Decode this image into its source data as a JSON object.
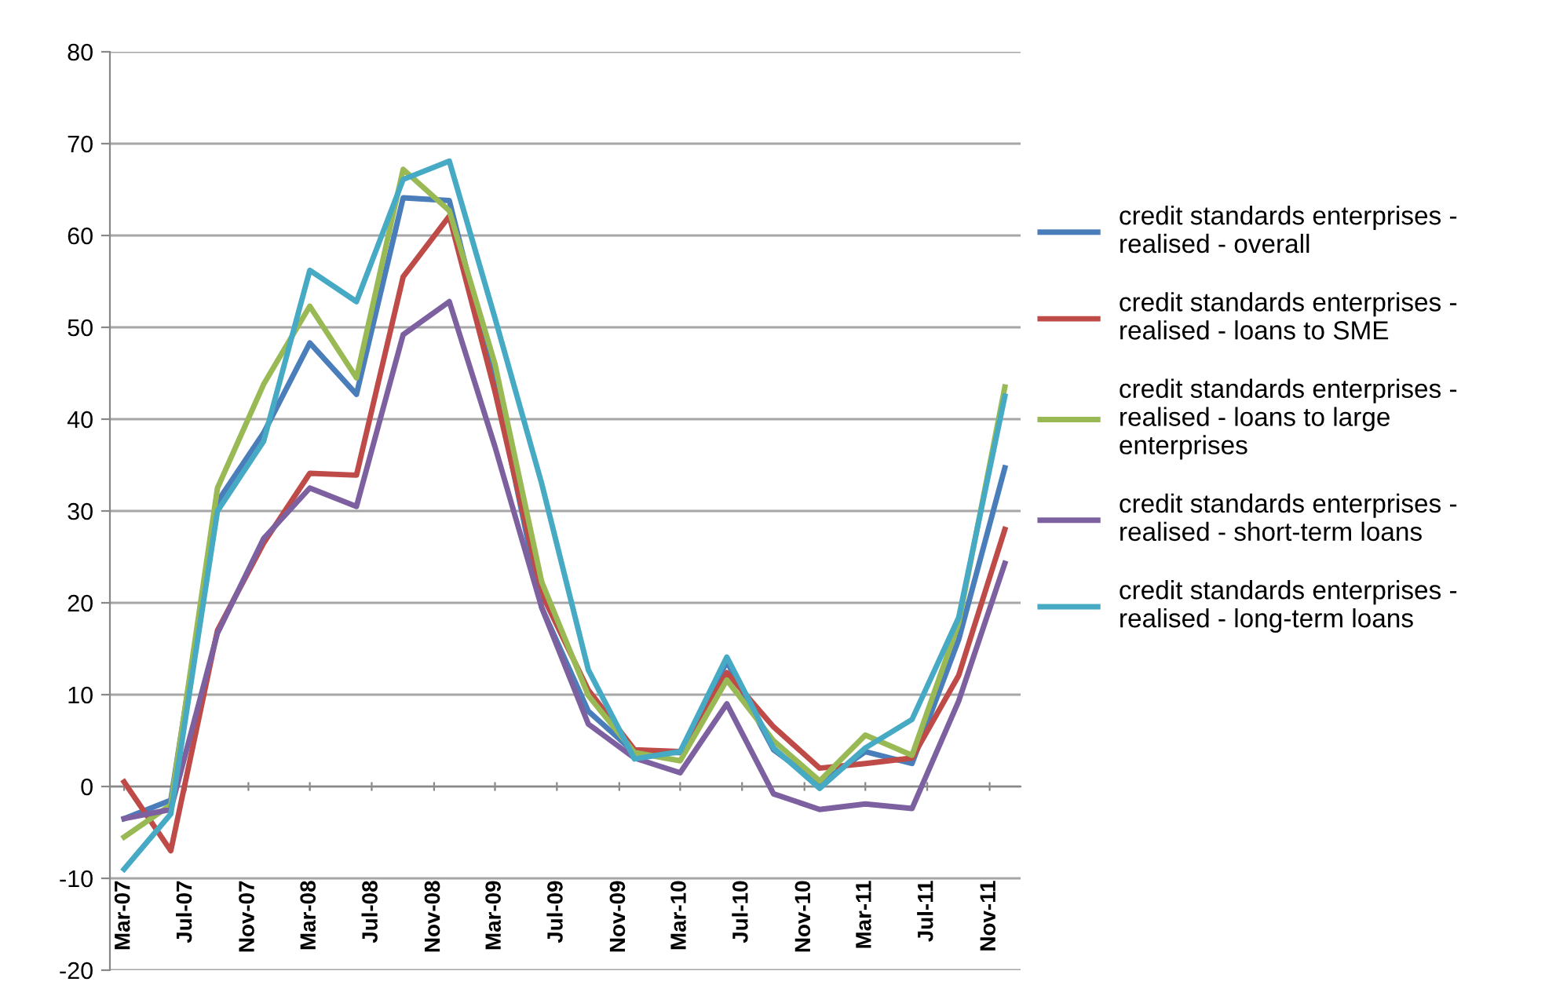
{
  "chart_data": {
    "type": "line",
    "x": [
      "2007-03",
      "2007-06",
      "2007-09",
      "2007-12",
      "2008-03",
      "2008-06",
      "2008-09",
      "2008-12",
      "2009-03",
      "2009-06",
      "2009-09",
      "2009-12",
      "2010-03",
      "2010-06",
      "2010-09",
      "2010-12",
      "2011-03",
      "2011-06",
      "2011-09",
      "2011-12"
    ],
    "series": [
      {
        "name": "credit standards enterprises - realised - overall",
        "color": "#4a7ebb",
        "values": [
          -3.5,
          -1.5,
          31,
          38.5,
          48.3,
          42.7,
          64.1,
          63.8,
          44,
          19.5,
          8.2,
          3.7,
          3.7,
          13.6,
          4,
          0.3,
          3.8,
          2.5,
          16,
          34.7
        ]
      },
      {
        "name": "credit standards enterprises - realised - loans to SME",
        "color": "#be4b48",
        "values": [
          0.5,
          -7,
          17,
          26.5,
          34.1,
          33.9,
          55.5,
          62.1,
          43,
          21,
          10.5,
          4,
          3.8,
          12.4,
          6.5,
          2,
          2.5,
          3.1,
          12.1,
          28
        ]
      },
      {
        "name": "credit standards enterprises - realised - loans to large enterprises",
        "color": "#98b954",
        "values": [
          -5.5,
          -2,
          32.5,
          43.8,
          52.3,
          44.5,
          67.2,
          62.7,
          46,
          22.3,
          9.9,
          3.7,
          2.8,
          11.6,
          5,
          0.6,
          5.6,
          3.4,
          17.8,
          43.5
        ]
      },
      {
        "name": "credit standards enterprises - realised - short-term loans",
        "color": "#7d60a0",
        "values": [
          -3.5,
          -2.5,
          16.7,
          27,
          32.5,
          30.5,
          49.2,
          52.8,
          37,
          19.5,
          6.8,
          3.1,
          1.5,
          9,
          -0.8,
          -2.5,
          -1.9,
          -2.4,
          9.3,
          24.3
        ]
      },
      {
        "name": "credit standards enterprises - realised - long-term loans",
        "color": "#46aac5",
        "values": [
          -9,
          -3,
          30,
          37.6,
          56.2,
          52.8,
          66.1,
          68.1,
          51,
          33,
          12.7,
          3,
          3.8,
          14.1,
          4.2,
          -0.2,
          4.2,
          7.3,
          18.4,
          42.5
        ]
      }
    ],
    "xlim": [
      "2007-02",
      "2012-01"
    ],
    "xticks": [
      {
        "value": "2007-03",
        "label": "Mar-07"
      },
      {
        "value": "2007-07",
        "label": "Jul-07"
      },
      {
        "value": "2007-11",
        "label": "Nov-07"
      },
      {
        "value": "2008-03",
        "label": "Mar-08"
      },
      {
        "value": "2008-07",
        "label": "Jul-08"
      },
      {
        "value": "2008-11",
        "label": "Nov-08"
      },
      {
        "value": "2009-03",
        "label": "Mar-09"
      },
      {
        "value": "2009-07",
        "label": "Jul-09"
      },
      {
        "value": "2009-11",
        "label": "Nov-09"
      },
      {
        "value": "2010-03",
        "label": "Mar-10"
      },
      {
        "value": "2010-07",
        "label": "Jul-10"
      },
      {
        "value": "2010-11",
        "label": "Nov-10"
      },
      {
        "value": "2011-03",
        "label": "Mar-11"
      },
      {
        "value": "2011-07",
        "label": "Jul-11"
      },
      {
        "value": "2011-11",
        "label": "Nov-11"
      }
    ],
    "ylim": [
      -20,
      80
    ],
    "yticks": [
      -20,
      -10,
      0,
      10,
      20,
      30,
      40,
      50,
      60,
      70,
      80
    ],
    "grid": "y",
    "legend": "right"
  }
}
